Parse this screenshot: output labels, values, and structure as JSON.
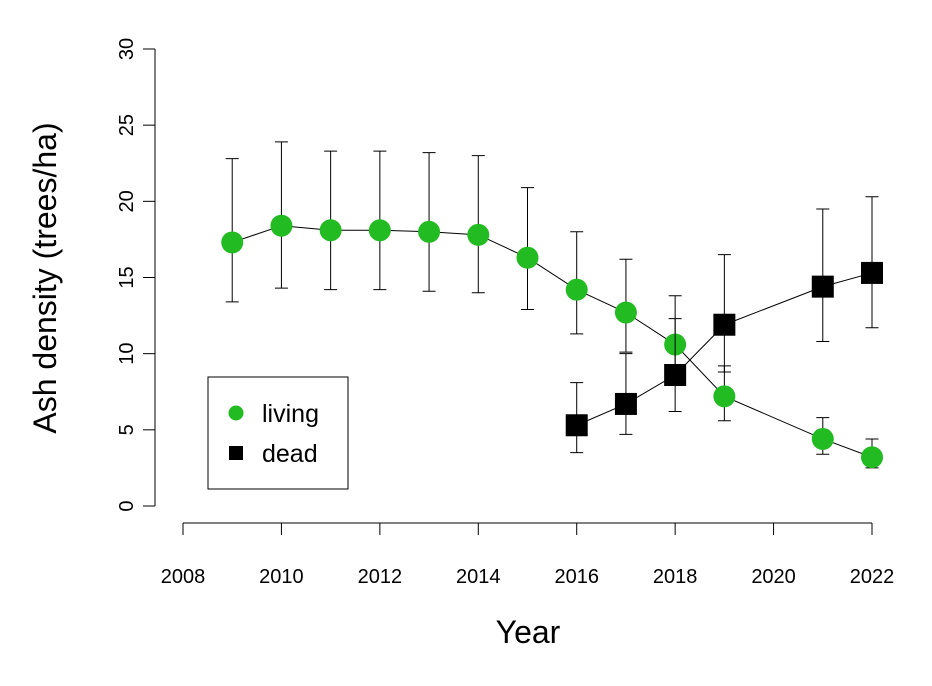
{
  "chart_data": {
    "type": "line",
    "xlabel": "Year",
    "ylabel": "Ash density (trees/ha)",
    "xlim": [
      2008,
      2022
    ],
    "xticks": [
      2008,
      2010,
      2012,
      2014,
      2016,
      2018,
      2020,
      2022
    ],
    "ylim": [
      0,
      30
    ],
    "yticks": [
      0,
      5,
      10,
      15,
      20,
      25,
      30
    ],
    "legend": "bottomleft",
    "series": [
      {
        "name": "living",
        "color": "#22bb22",
        "marker": "circle",
        "x": [
          2009,
          2010,
          2011,
          2012,
          2013,
          2014,
          2015,
          2016,
          2017,
          2018,
          2019,
          2021,
          2022
        ],
        "values": [
          17.3,
          18.4,
          18.1,
          18.1,
          18.0,
          17.8,
          16.3,
          14.2,
          12.7,
          10.6,
          7.2,
          4.4,
          3.2
        ],
        "lower": [
          13.4,
          14.3,
          14.2,
          14.2,
          14.1,
          14.0,
          12.9,
          11.3,
          10.1,
          8.7,
          5.6,
          3.4,
          2.5
        ],
        "upper": [
          22.8,
          23.9,
          23.3,
          23.3,
          23.2,
          23.0,
          20.9,
          18.0,
          16.2,
          13.8,
          9.2,
          5.8,
          4.4
        ]
      },
      {
        "name": "dead",
        "color": "#000000",
        "marker": "square",
        "x": [
          2016,
          2017,
          2018,
          2019,
          2021,
          2022
        ],
        "values": [
          5.3,
          6.7,
          8.6,
          11.9,
          14.4,
          15.3
        ],
        "lower": [
          3.5,
          4.7,
          6.2,
          8.8,
          10.8,
          11.7
        ],
        "upper": [
          8.1,
          10.0,
          12.3,
          16.5,
          19.5,
          20.3
        ]
      }
    ]
  }
}
